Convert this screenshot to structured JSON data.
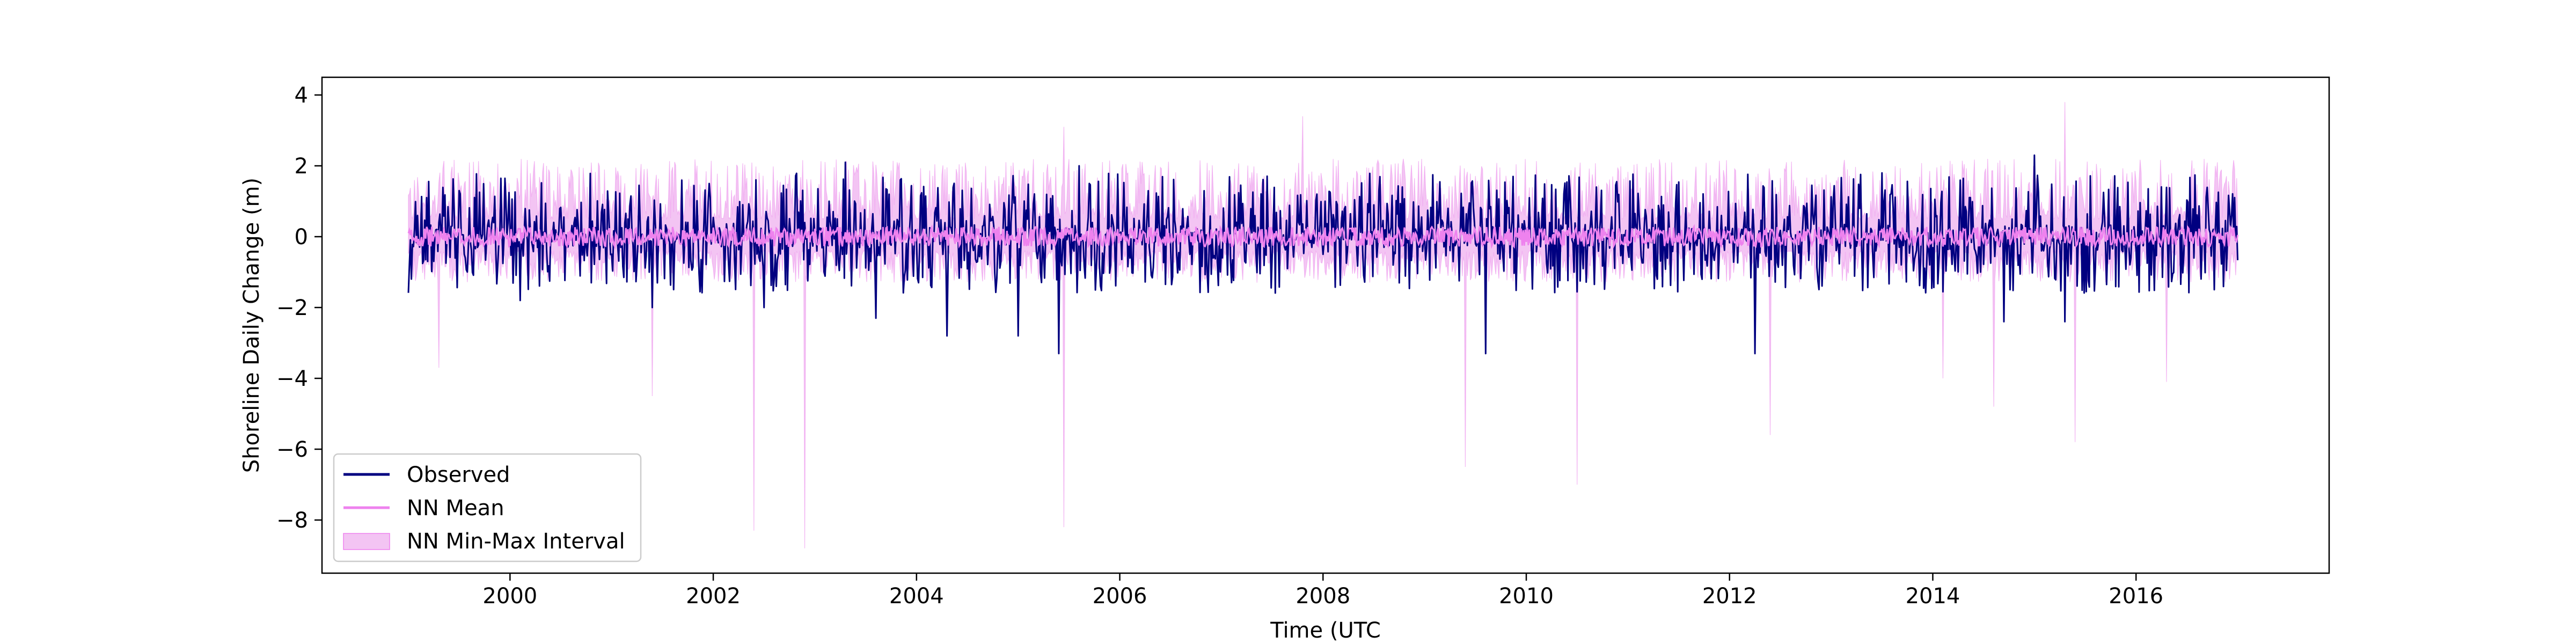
{
  "chart_data": {
    "type": "line",
    "title": "",
    "xlabel": "Time (UTC",
    "ylabel": "Shoreline Daily Change (m)",
    "xlim": [
      1998.15,
      2017.9
    ],
    "ylim": [
      -9.5,
      4.5
    ],
    "x_start": 1999.0,
    "x_end": 2017.0,
    "x_ticks": [
      2000,
      2002,
      2004,
      2006,
      2008,
      2010,
      2012,
      2014,
      2016
    ],
    "x_tick_labels": [
      "2000",
      "2002",
      "2004",
      "2006",
      "2008",
      "2010",
      "2012",
      "2014",
      "2016"
    ],
    "y_ticks": [
      -8,
      -6,
      -4,
      -2,
      0,
      2,
      4
    ],
    "y_tick_labels": [
      "−8",
      "−6",
      "−4",
      "−2",
      "0",
      "2",
      "4"
    ],
    "grid": false,
    "legend_position": "lower-left",
    "colors": {
      "observed": "#000080",
      "nn_mean": "#ee82ee",
      "interval": "#f3c4f3"
    },
    "series": [
      {
        "name": "Observed",
        "style": "line",
        "typical_range": [
          -1.6,
          1.8
        ],
        "extremes": [
          {
            "x": 2000.1,
            "y": -1.8
          },
          {
            "x": 2001.4,
            "y": -2.0
          },
          {
            "x": 2002.5,
            "y": -2.0
          },
          {
            "x": 2003.3,
            "y": 2.1
          },
          {
            "x": 2003.6,
            "y": -2.3
          },
          {
            "x": 2004.3,
            "y": -2.8
          },
          {
            "x": 2005.0,
            "y": -2.8
          },
          {
            "x": 2005.4,
            "y": -3.3
          },
          {
            "x": 2005.6,
            "y": 2.0
          },
          {
            "x": 2009.6,
            "y": -3.3
          },
          {
            "x": 2012.25,
            "y": -3.3
          },
          {
            "x": 2014.7,
            "y": -2.4
          },
          {
            "x": 2015.0,
            "y": 2.3
          },
          {
            "x": 2015.3,
            "y": -2.4
          }
        ]
      },
      {
        "name": "NN Mean",
        "style": "line",
        "typical_range": [
          -0.35,
          0.35
        ]
      },
      {
        "name": "NN Min-Max Interval",
        "style": "band",
        "typical_range": [
          -1.3,
          2.2
        ],
        "extremes": [
          {
            "x": 1999.3,
            "y": -3.7
          },
          {
            "x": 2001.4,
            "y": -4.5
          },
          {
            "x": 2002.4,
            "y": -8.3
          },
          {
            "x": 2002.9,
            "y": -8.8
          },
          {
            "x": 2005.45,
            "y": -8.2
          },
          {
            "x": 2005.45,
            "y": 3.1
          },
          {
            "x": 2007.8,
            "y": 3.4
          },
          {
            "x": 2009.4,
            "y": -6.5
          },
          {
            "x": 2010.5,
            "y": -7.0
          },
          {
            "x": 2012.4,
            "y": -5.6
          },
          {
            "x": 2014.1,
            "y": -4.0
          },
          {
            "x": 2014.6,
            "y": -4.8
          },
          {
            "x": 2015.4,
            "y": -5.8
          },
          {
            "x": 2015.3,
            "y": 3.8
          },
          {
            "x": 2016.3,
            "y": -4.1
          }
        ]
      }
    ]
  }
}
